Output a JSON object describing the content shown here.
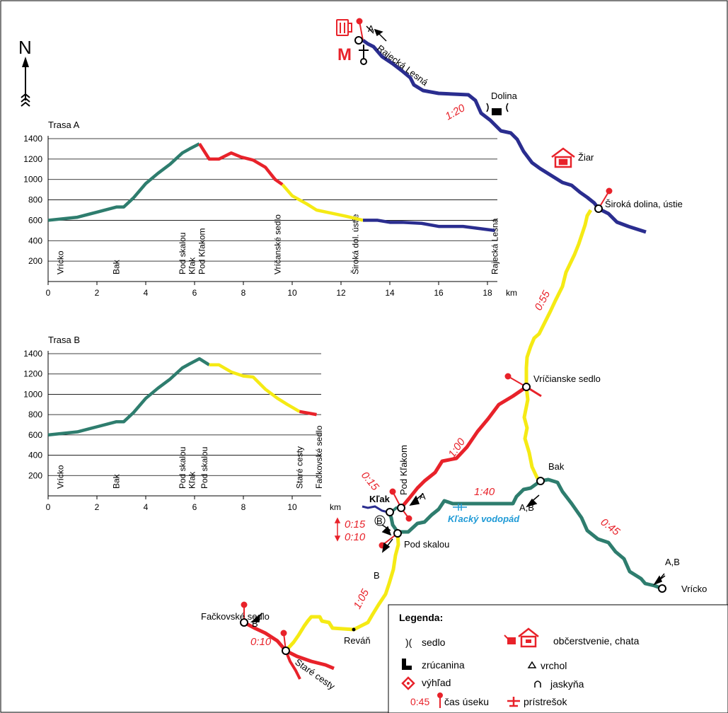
{
  "colors": {
    "blue": "#2a2d8f",
    "green": "#2e7d6e",
    "red": "#e8222a",
    "yellow": "#f5ea14",
    "water": "#1e9ad6"
  },
  "compass": {
    "north": "N"
  },
  "places": {
    "rajecka_lesna": "Rajecká Lesná",
    "dolina": "Dolina",
    "ziar": "Žiar",
    "siroka_dolina": "Široká dolina, ústie",
    "vricianske_sedlo": "Vríčianske sedlo",
    "bak": "Bak",
    "klak": "Kľak",
    "pod_klakom": "Pod Kľakom",
    "pod_skalou": "Pod skalou",
    "klacky_vodopad": "Kľacký vodopád",
    "vricko": "Vrícko",
    "revan": "Reváň",
    "fackovske_sedlo": "Fačkovské sedlo",
    "stare_cesty": "Staré cesty",
    "dir_A": "A",
    "dir_B": "B",
    "dir_AB": "A,B",
    "dir_AB2": "A,B",
    "dir_A2": "A",
    "dir_B2": "B",
    "dir_B3": "B",
    "dir_B4": "B"
  },
  "times": {
    "t1": "1:20",
    "t2": "0:55",
    "t3": "1:00",
    "t4": "0:15",
    "t5": "1:40",
    "t6": "0:45",
    "t7": "0:15",
    "t8": "0:10",
    "t9": "1:05",
    "t10": "0:10"
  },
  "legend": {
    "title": "Legenda:",
    "sedlo_sym": ")(",
    "sedlo": "sedlo",
    "zrucanina": "zrúcanina",
    "vyhlad": "výhľad",
    "cas_value": "0:45",
    "cas": "čas úseku",
    "obcerstvenie": "občerstvenie, chata",
    "vrchol": "vrchol",
    "jaskyna": "jaskyňa",
    "pristresok": "prístrešok"
  },
  "chart_data": [
    {
      "type": "line",
      "title": "Trasa A",
      "xlabel": "km",
      "ylabel": "",
      "xlim": [
        0,
        18.5
      ],
      "ylim": [
        0,
        1400
      ],
      "x_ticks": [
        0,
        2,
        4,
        6,
        8,
        10,
        12,
        14,
        16,
        18
      ],
      "y_ticks": [
        200,
        400,
        600,
        800,
        1000,
        1200,
        1400
      ],
      "x": [
        0,
        1.2,
        2,
        2.8,
        3.1,
        3.5,
        4,
        4.5,
        5,
        5.5,
        5.8,
        6.2,
        6.6,
        7,
        7.5,
        7.9,
        8.4,
        8.9,
        9.3,
        9.6,
        10,
        10.6,
        11,
        11.6,
        12.2,
        12.9,
        13.5,
        14,
        14.5,
        15.3,
        16,
        17,
        18.3
      ],
      "y": [
        600,
        630,
        680,
        730,
        730,
        820,
        960,
        1060,
        1150,
        1260,
        1300,
        1350,
        1200,
        1200,
        1260,
        1220,
        1190,
        1120,
        1000,
        950,
        840,
        760,
        700,
        670,
        640,
        600,
        600,
        580,
        580,
        570,
        540,
        540,
        500
      ],
      "segments": [
        {
          "color": "green",
          "from_km": 0,
          "to_km": 6.2
        },
        {
          "color": "red",
          "from_km": 6.2,
          "to_km": 9.6
        },
        {
          "color": "yellow",
          "from_km": 9.6,
          "to_km": 12.9
        },
        {
          "color": "blue",
          "from_km": 12.9,
          "to_km": 18.3
        }
      ],
      "annotations": [
        "Vrícko",
        "Bak",
        "Pod skalou",
        "Kľak",
        "Pod Kľakom",
        "Vríčanské sedlo",
        "Široká dol. ústie",
        "Rajecká Lesná"
      ],
      "annotation_km": [
        0.5,
        2.8,
        5.5,
        5.9,
        6.3,
        9.4,
        12.6,
        18.3
      ]
    },
    {
      "type": "line",
      "title": "Trasa B",
      "xlabel": "km",
      "ylabel": "",
      "xlim": [
        0,
        11.5
      ],
      "ylim": [
        0,
        1400
      ],
      "x_ticks": [
        0,
        2,
        4,
        6,
        8,
        10
      ],
      "y_ticks": [
        200,
        400,
        600,
        800,
        1000,
        1200,
        1400
      ],
      "x": [
        0,
        1.2,
        2,
        2.8,
        3.1,
        3.5,
        4,
        4.5,
        5,
        5.5,
        5.8,
        6.2,
        6.6,
        7,
        7.5,
        8,
        8.4,
        8.9,
        9.4,
        9.8,
        10.3,
        11
      ],
      "y": [
        600,
        630,
        680,
        730,
        730,
        820,
        960,
        1060,
        1150,
        1260,
        1300,
        1350,
        1290,
        1290,
        1220,
        1180,
        1170,
        1050,
        960,
        900,
        830,
        800
      ],
      "segments": [
        {
          "color": "green",
          "from_km": 0,
          "to_km": 6.6
        },
        {
          "color": "yellow",
          "from_km": 6.6,
          "to_km": 10.3
        },
        {
          "color": "red",
          "from_km": 10.3,
          "to_km": 11
        }
      ],
      "annotations": [
        "Vrícko",
        "Bak",
        "Pod skalou",
        "Kľak",
        "Pod skalou",
        "Staré cesty",
        "Fačkovské sedlo"
      ],
      "annotation_km": [
        0.5,
        2.8,
        5.5,
        5.9,
        6.4,
        10.3,
        11.1
      ],
      "xlabel_prefix_tick": "10 km"
    }
  ]
}
